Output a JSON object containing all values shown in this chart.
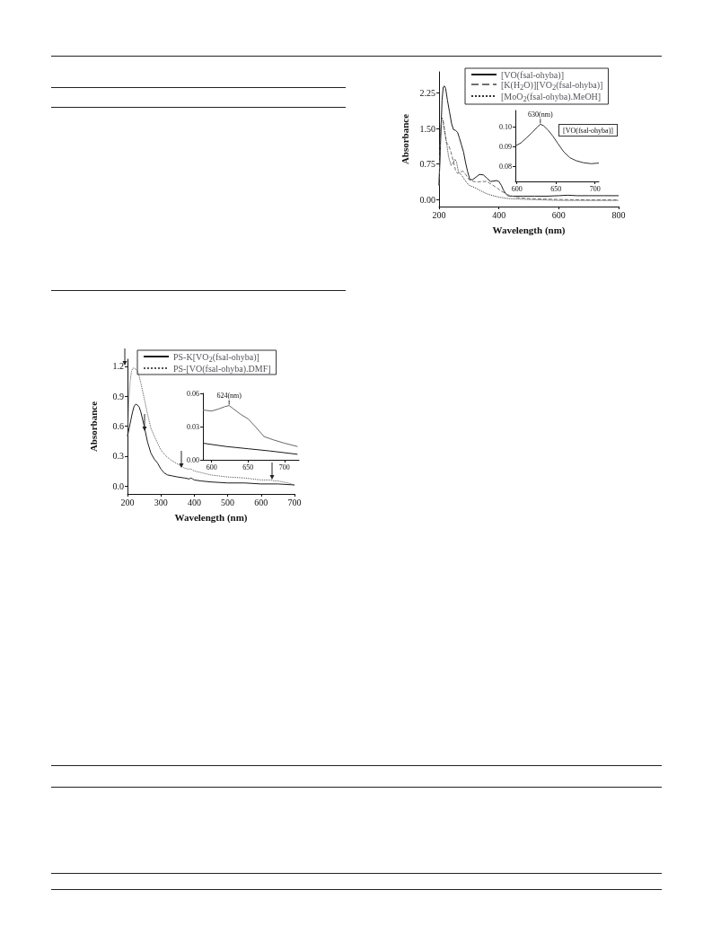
{
  "chart_data": [
    {
      "type": "line",
      "xlabel": "Wavelength (nm)",
      "ylabel": "Absorbance",
      "xlim": [
        200,
        800
      ],
      "ylim": [
        -0.15,
        2.7
      ],
      "xticks": [
        200,
        400,
        600,
        800
      ],
      "yticks": [
        {
          "value": 0,
          "label": "0.00"
        },
        0.75,
        {
          "value": 1.5,
          "label": "1.50"
        },
        2.25
      ],
      "grid": false,
      "marker": "none",
      "legend": "top",
      "series": [
        {
          "name": "[VO(fsal-ohyba)]",
          "color": "#1a1a1a",
          "line_style": "solid",
          "x": [
            200,
            205,
            210,
            214,
            218,
            222,
            228,
            235,
            242,
            248,
            255,
            262,
            268,
            275,
            282,
            288,
            295,
            303,
            312,
            323,
            335,
            348,
            360,
            372,
            383,
            392,
            400,
            408,
            415,
            423,
            430,
            440,
            455,
            480,
            520,
            560,
            600,
            630,
            660,
            700,
            750,
            800
          ],
          "values": [
            0.3,
            1.2,
            2.1,
            2.38,
            2.4,
            2.35,
            2.1,
            1.85,
            1.6,
            1.48,
            1.46,
            1.42,
            1.3,
            1.15,
            1.0,
            0.8,
            0.6,
            0.42,
            0.42,
            0.47,
            0.53,
            0.52,
            0.45,
            0.38,
            0.39,
            0.4,
            0.38,
            0.3,
            0.2,
            0.12,
            0.08,
            0.07,
            0.07,
            0.07,
            0.07,
            0.07,
            0.08,
            0.09,
            0.08,
            0.08,
            0.08,
            0.08
          ]
        },
        {
          "name": "[K(H$_{2}$O)][VO$_{2}$(fsal-ohyba)]",
          "color": "#707070",
          "line_style": "dashed",
          "x": [
            200,
            204,
            208,
            212,
            218,
            225,
            232,
            240,
            248,
            255,
            262,
            270,
            280,
            290,
            300,
            315,
            330,
            345,
            360,
            375,
            390,
            410,
            430,
            460,
            500,
            600,
            700,
            800
          ],
          "values": [
            0.3,
            1.2,
            1.7,
            1.72,
            1.5,
            1.2,
            1.15,
            1.0,
            0.8,
            0.62,
            0.55,
            0.58,
            0.6,
            0.52,
            0.42,
            0.38,
            0.37,
            0.38,
            0.38,
            0.32,
            0.26,
            0.17,
            0.1,
            0.04,
            0.02,
            0.0,
            -0.01,
            -0.01
          ]
        },
        {
          "name": "[MoO$_{2}$(fsal-ohyba).MeOH]",
          "color": "#333333",
          "line_style": "dotted",
          "x": [
            200,
            204,
            208,
            212,
            218,
            225,
            232,
            240,
            247,
            253,
            258,
            265,
            275,
            285,
            300,
            320,
            340,
            360,
            380,
            400,
            430,
            460,
            500,
            600,
            700,
            800
          ],
          "values": [
            0.3,
            1.3,
            1.72,
            1.7,
            1.45,
            1.2,
            0.9,
            0.72,
            0.78,
            0.85,
            0.8,
            0.58,
            0.52,
            0.42,
            0.3,
            0.25,
            0.18,
            0.12,
            0.08,
            0.05,
            0.02,
            0.01,
            0.0,
            -0.02,
            -0.02,
            -0.02
          ]
        }
      ]
    },
    {
      "type": "line",
      "xlim": [
        598,
        705
      ],
      "ylim": [
        0.0725,
        0.1085
      ],
      "xticks": [
        600,
        650,
        700
      ],
      "yticks": [
        0.08,
        0.09,
        {
          "value": 0.1,
          "label": "0.10"
        }
      ],
      "grid": false,
      "marker": "none",
      "series": [
        {
          "color": "#333333",
          "line_style": "solid",
          "x": [
            598,
            605,
            612,
            620,
            626,
            630,
            634,
            640,
            646,
            652,
            660,
            668,
            676,
            685,
            695,
            705
          ],
          "values": [
            0.0905,
            0.092,
            0.0945,
            0.0975,
            0.1,
            0.1015,
            0.1008,
            0.0985,
            0.0955,
            0.092,
            0.0875,
            0.0845,
            0.083,
            0.082,
            0.0815,
            0.0818
          ]
        }
      ],
      "annotations": [
        {
          "text": "630(nm)",
          "x": 630,
          "y": 0.1015
        },
        "[VO(fsal-ohyba)]"
      ]
    },
    {
      "type": "line",
      "xlabel": "Wavelength (nm)",
      "ylabel": "Absorbance",
      "xlim": [
        200,
        700
      ],
      "ylim": [
        -0.08,
        1.27
      ],
      "xticks": [
        200,
        300,
        400,
        500,
        600,
        700
      ],
      "yticks": [
        {
          "value": 0,
          "label": "0.0"
        },
        0.3,
        0.6,
        0.9,
        1.2
      ],
      "grid": false,
      "marker": "none",
      "legend": "top",
      "series": [
        {
          "name": "PS-K[VO$_{2}$(fsal-ohyba)]",
          "color": "#1a1a1a",
          "line_style": "solid",
          "x": [
            200,
            205,
            210,
            215,
            220,
            225,
            230,
            235,
            240,
            250,
            260,
            270,
            280,
            290,
            300,
            310,
            320,
            335,
            350,
            370,
            385,
            390,
            395,
            400,
            420,
            450,
            500,
            550,
            600,
            650,
            700
          ],
          "values": [
            0.5,
            0.58,
            0.66,
            0.74,
            0.8,
            0.82,
            0.81,
            0.79,
            0.74,
            0.6,
            0.44,
            0.33,
            0.27,
            0.23,
            0.17,
            0.13,
            0.11,
            0.1,
            0.09,
            0.08,
            0.07,
            0.08,
            0.07,
            0.06,
            0.05,
            0.04,
            0.03,
            0.03,
            0.02,
            0.02,
            0.01
          ]
        },
        {
          "name": "PS-[VO(fsal-ohyba).DMF]",
          "color": "#555555",
          "line_style": "dotted",
          "x": [
            200,
            204,
            208,
            212,
            216,
            220,
            225,
            230,
            235,
            240,
            250,
            260,
            270,
            280,
            290,
            300,
            315,
            330,
            350,
            370,
            380,
            385,
            390,
            400,
            425,
            450,
            500,
            550,
            600,
            630,
            640,
            650,
            680,
            700
          ],
          "values": [
            0.5,
            0.85,
            1.05,
            1.15,
            1.18,
            1.18,
            1.17,
            1.15,
            1.1,
            1.03,
            0.88,
            0.72,
            0.58,
            0.5,
            0.43,
            0.36,
            0.3,
            0.26,
            0.22,
            0.18,
            0.17,
            0.17,
            0.17,
            0.15,
            0.13,
            0.11,
            0.09,
            0.08,
            0.06,
            0.06,
            0.05,
            0.05,
            0.03,
            0.01
          ]
        }
      ]
    },
    {
      "type": "line",
      "xlim": [
        588,
        720
      ],
      "ylim": [
        0,
        0.06
      ],
      "xticks": [
        600,
        650,
        700
      ],
      "yticks": [
        {
          "value": 0,
          "label": "0.00"
        },
        0.03,
        0.06
      ],
      "grid": false,
      "marker": "none",
      "series": [
        {
          "color": "#666666",
          "line_style": "solid",
          "x": [
            588,
            600,
            610,
            618,
            624,
            630,
            640,
            650,
            660,
            672,
            685,
            700,
            718
          ],
          "values": [
            0.045,
            0.044,
            0.046,
            0.048,
            0.049,
            0.046,
            0.041,
            0.037,
            0.03,
            0.021,
            0.018,
            0.015,
            0.012
          ]
        },
        {
          "color": "#1a1a1a",
          "line_style": "solid",
          "x": [
            588,
            620,
            650,
            680,
            718
          ],
          "values": [
            0.015,
            0.012,
            0.01,
            0.008,
            0.005
          ]
        }
      ],
      "annotations": [
        {
          "text": "624(nm)",
          "x": 624,
          "y": 0.049
        }
      ]
    }
  ]
}
